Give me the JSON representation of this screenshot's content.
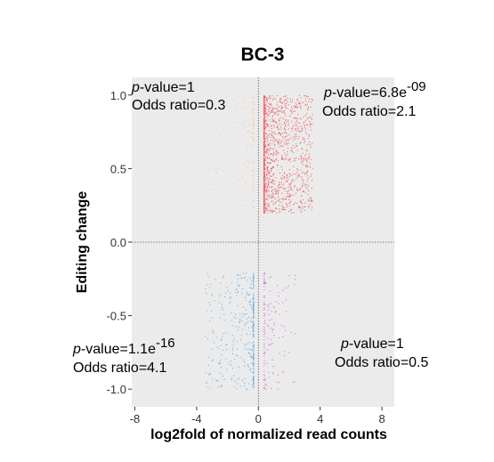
{
  "chart_data": {
    "type": "scatter",
    "title": "BC-3",
    "xlabel": "log2fold of normalized read counts",
    "ylabel": "Editing change",
    "xlim": [
      -8.2,
      8.8
    ],
    "ylim": [
      -1.12,
      1.12
    ],
    "x_ticks": [
      "-8",
      "-4",
      "0",
      "4",
      "8"
    ],
    "x_tick_values": [
      -8,
      -4,
      0,
      4,
      8
    ],
    "y_ticks": [
      "1.0",
      "0.5",
      "0.0",
      "-0.5",
      "-1.0"
    ],
    "y_tick_values": [
      1.0,
      0.5,
      0.0,
      -0.5,
      -1.0
    ],
    "grid": false,
    "reference_lines": {
      "x": 0,
      "y": 0,
      "style": "dotted"
    },
    "panel_background": "#ebebeb",
    "quadrants": [
      {
        "id": "upper-left",
        "color": "#f4c59b",
        "x_range": [
          -3.5,
          0
        ],
        "y_range": [
          0.2,
          1.0
        ],
        "density": "sparse",
        "annotation": {
          "p_label": "p",
          "p_text": "-value=1",
          "p_exponent": "",
          "odds_text": "Odds ratio=0.3"
        }
      },
      {
        "id": "upper-right",
        "color": "#f0525b",
        "x_range": [
          0,
          3.5
        ],
        "y_range": [
          0.2,
          1.0
        ],
        "density": "dense",
        "annotation": {
          "p_label": "p",
          "p_text": "-value=6.8e",
          "p_exponent": "-09",
          "odds_text": "Odds ratio=2.1"
        }
      },
      {
        "id": "lower-left",
        "color": "#5ea7e0",
        "x_range": [
          -3.5,
          0
        ],
        "y_range": [
          -1.0,
          -0.2
        ],
        "density": "medium",
        "annotation": {
          "p_label": "p",
          "p_text": "-value=1.1e",
          "p_exponent": "-16",
          "odds_text": "Odds ratio=4.1"
        }
      },
      {
        "id": "lower-right",
        "color": "#d95fd9",
        "x_range": [
          0,
          2.5
        ],
        "y_range": [
          -1.0,
          -0.2
        ],
        "density": "sparse",
        "annotation": {
          "p_label": "p",
          "p_text": "-value=1",
          "p_exponent": "",
          "odds_text": "Odds ratio=0.5"
        }
      }
    ]
  }
}
